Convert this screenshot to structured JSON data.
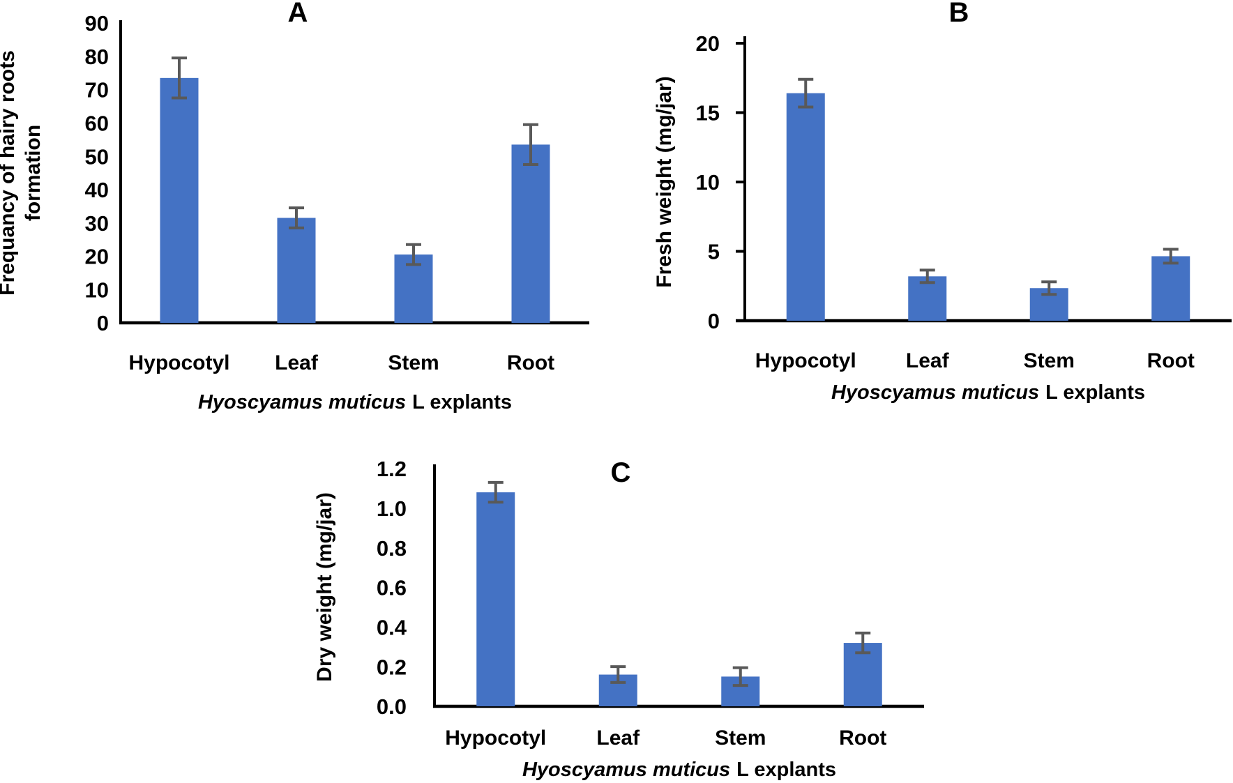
{
  "figure": {
    "background": "#ffffff",
    "colors": {
      "bar": "#4472C4",
      "error_bar": "#595959",
      "axis": "#000000",
      "text": "#000000"
    },
    "panels": [
      "A",
      "B",
      "C"
    ]
  },
  "chart_data": [
    {
      "type": "bar",
      "panel": "A",
      "categories": [
        "Hypocotyl",
        "Leaf",
        "Stem",
        "Root"
      ],
      "values": [
        73.5,
        31.5,
        20.5,
        53.5
      ],
      "errors": [
        6,
        3,
        3,
        6
      ],
      "ylabel": "Frequancy of hairy roots formation",
      "ylabel_lines": [
        "Frequancy of hairy roots",
        "formation"
      ],
      "xlabel_italic": "Hyoscyamus muticus",
      "xlabel_regular": "L explants",
      "ylim": [
        0,
        90
      ],
      "yticks": [
        0,
        10,
        20,
        30,
        40,
        50,
        60,
        70,
        80,
        90
      ],
      "ytick_labels": [
        "0",
        "10",
        "20",
        "30",
        "40",
        "50",
        "60",
        "70",
        "80",
        "90"
      ],
      "grid": false,
      "legend": false
    },
    {
      "type": "bar",
      "panel": "B",
      "categories": [
        "Hypocotyl",
        "Leaf",
        "Stem",
        "Root"
      ],
      "values": [
        16.4,
        3.2,
        2.35,
        4.65
      ],
      "errors": [
        1.0,
        0.45,
        0.45,
        0.5
      ],
      "ylabel": "Fresh weight (mg/jar)",
      "ylabel_lines": [
        "Fresh weight (mg/jar)"
      ],
      "xlabel_italic": "Hyoscyamus muticus",
      "xlabel_regular": "L explants",
      "ylim": [
        0,
        20
      ],
      "yticks": [
        0,
        5,
        10,
        15,
        20
      ],
      "ytick_labels": [
        "0",
        "5",
        "10",
        "15",
        "20"
      ],
      "grid": false,
      "legend": false
    },
    {
      "type": "bar",
      "panel": "C",
      "categories": [
        "Hypocotyl",
        "Leaf",
        "Stem",
        "Root"
      ],
      "values": [
        1.08,
        0.16,
        0.15,
        0.32
      ],
      "errors": [
        0.05,
        0.04,
        0.045,
        0.05
      ],
      "ylabel": "Dry weight (mg/jar)",
      "ylabel_lines": [
        "Dry weight (mg/jar)"
      ],
      "xlabel_italic": "Hyoscyamus muticus",
      "xlabel_regular": "L explants",
      "ylim": [
        0,
        1.2
      ],
      "yticks": [
        0,
        0.2,
        0.4,
        0.6,
        0.8,
        1.0,
        1.2
      ],
      "ytick_labels": [
        "0.0",
        "0.2",
        "0.4",
        "0.6",
        "0.8",
        "1.0",
        "1.2"
      ],
      "grid": false,
      "legend": false
    }
  ]
}
